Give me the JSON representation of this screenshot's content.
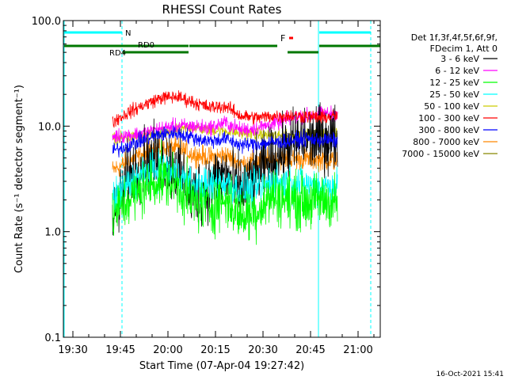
{
  "chart_data": {
    "type": "line",
    "title": "RHESSI Count Rates",
    "xlabel": "Start Time (07-Apr-04 19:27:42)",
    "ylabel": "Count Rate (s⁻¹ detector segment⁻¹)",
    "yscale": "log",
    "ylim": [
      0.1,
      100.0
    ],
    "xlim_minutes": [
      -3,
      97
    ],
    "x_tick_labels": [
      "19:30",
      "19:45",
      "20:00",
      "20:15",
      "20:30",
      "20:45",
      "21:00"
    ],
    "x_tick_minutes": [
      0,
      15,
      30,
      45,
      60,
      75,
      90
    ],
    "y_tick_labels": [
      "0.1",
      "1.0",
      "10.0",
      "100.0"
    ],
    "y_tick_values": [
      0.1,
      1.0,
      10.0,
      100.0
    ],
    "legend_header": [
      "Det 1f,3f,4f,5f,6f,9f,",
      "FDecim 1, Att 0"
    ],
    "data_start_minute": 12.5,
    "data_end_minute": 83.5,
    "series": [
      {
        "name": "3 - 6 keV",
        "color": "#000000",
        "values": [
          1.2,
          3.5,
          4.6,
          4.8,
          4.0,
          2.2,
          2.8,
          3.5,
          2.4,
          3.5,
          4.8,
          6.5,
          7.5,
          7.5,
          7.8
        ]
      },
      {
        "name": "6 - 12 keV",
        "color": "#ff00ff",
        "values": [
          8.0,
          8.2,
          8.6,
          9.5,
          10.0,
          10.0,
          9.6,
          10.8,
          9.2,
          9.6,
          10.5,
          11.8,
          12.5,
          13.0,
          13.2
        ]
      },
      {
        "name": "12 - 25 keV",
        "color": "#00ff00",
        "values": [
          1.4,
          2.0,
          2.6,
          3.2,
          2.8,
          1.9,
          1.7,
          2.0,
          1.4,
          1.6,
          2.2,
          2.0,
          1.9,
          2.0,
          1.9
        ]
      },
      {
        "name": "25 - 50 keV",
        "color": "#00ffff",
        "values": [
          2.0,
          2.8,
          3.6,
          4.0,
          3.5,
          2.7,
          2.7,
          3.0,
          2.4,
          2.6,
          3.0,
          2.9,
          2.8,
          2.7,
          2.7
        ]
      },
      {
        "name": "50 - 100 keV",
        "color": "#cccc00",
        "values": [
          7.6,
          7.8,
          8.0,
          8.4,
          9.0,
          9.8,
          9.2,
          9.0,
          8.6,
          8.4,
          8.2,
          8.0,
          8.2,
          8.3,
          8.4
        ]
      },
      {
        "name": "100 - 300 keV",
        "color": "#ff0000",
        "values": [
          11.0,
          13.5,
          16.0,
          18.5,
          19.0,
          17.0,
          15.0,
          15.5,
          12.5,
          12.0,
          12.5,
          12.5,
          12.5,
          12.0,
          12.5
        ]
      },
      {
        "name": "300 - 800 keV",
        "color": "#0000ff",
        "values": [
          5.8,
          6.6,
          7.5,
          8.4,
          8.6,
          7.8,
          7.2,
          7.6,
          6.6,
          6.8,
          7.0,
          7.2,
          7.6,
          7.4,
          7.3
        ]
      },
      {
        "name": "800 - 7000 keV",
        "color": "#ff8800",
        "values": [
          3.8,
          4.6,
          5.5,
          6.3,
          6.2,
          5.4,
          5.0,
          5.3,
          4.4,
          4.6,
          4.9,
          4.8,
          4.9,
          4.8,
          4.7
        ]
      },
      {
        "name": "7000 - 15000 keV",
        "color": "#888800",
        "values": []
      }
    ],
    "flag_bars": [
      {
        "label": "N",
        "color": "#00ffff",
        "segments_minutes": [
          [
            -3,
            15.5
          ],
          [
            77.5,
            94
          ]
        ]
      },
      {
        "label": "RD0",
        "color": "#007700",
        "segments_minutes": [
          [
            -3,
            36.5
          ]
        ]
      },
      {
        "label": "RD4",
        "color": "#007700",
        "segments_minutes": [
          [
            15.5,
            36.5
          ],
          [
            67.5,
            77.5
          ]
        ]
      },
      {
        "label": "",
        "color": "#007700",
        "segments_minutes": [
          [
            36.5,
            64.5
          ],
          [
            77.5,
            97
          ]
        ]
      },
      {
        "label": "F",
        "color": "#ff0000",
        "segments_minutes": [
          [
            68,
            69.5
          ]
        ]
      }
    ],
    "vertical_markers": [
      {
        "minute": -3,
        "color": "#00ffff",
        "style": "solid"
      },
      {
        "minute": 15.5,
        "color": "#00ffff",
        "style": "dashed"
      },
      {
        "minute": 77.5,
        "color": "#00ffff",
        "style": "solid"
      },
      {
        "minute": 94,
        "color": "#00ffff",
        "style": "dashed"
      }
    ],
    "footer_date": "16-Oct-2021 15:41"
  }
}
